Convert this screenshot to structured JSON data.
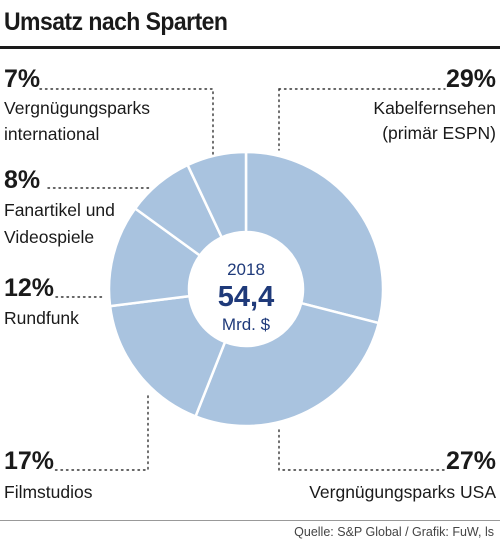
{
  "title": "Umsatz nach Sparten",
  "source": "Quelle: S&P Global / Grafik: FuW, ls",
  "colors": {
    "slice": "#a9c3df",
    "slice_stroke": "#ffffff",
    "center_text": "#1f3a7a",
    "text": "#1a1a1a"
  },
  "chart_data": {
    "type": "pie",
    "variant": "donut",
    "center": {
      "year": "2018",
      "value": "54,4",
      "unit": "Mrd. $"
    },
    "slices": [
      {
        "name": "Kabelfernsehen (primär ESPN)",
        "value": 29,
        "value_label": "29%",
        "label_lines": [
          "Kabelfernsehen",
          "(primär ESPN)"
        ]
      },
      {
        "name": "Vergnügungsparks USA",
        "value": 27,
        "value_label": "27%",
        "label_lines": [
          "Vergnügungsparks USA"
        ]
      },
      {
        "name": "Filmstudios",
        "value": 17,
        "value_label": "17%",
        "label_lines": [
          "Filmstudios"
        ]
      },
      {
        "name": "Rundfunk",
        "value": 12,
        "value_label": "12%",
        "label_lines": [
          "Rundfunk"
        ]
      },
      {
        "name": "Fanartikel und Videospiele",
        "value": 8,
        "value_label": "8%",
        "label_lines": [
          "Fanartikel und",
          "Videospiele"
        ]
      },
      {
        "name": "Vergnügungsparks international",
        "value": 7,
        "value_label": "7%",
        "label_lines": [
          "Vergnügungsparks",
          "international"
        ]
      }
    ]
  }
}
